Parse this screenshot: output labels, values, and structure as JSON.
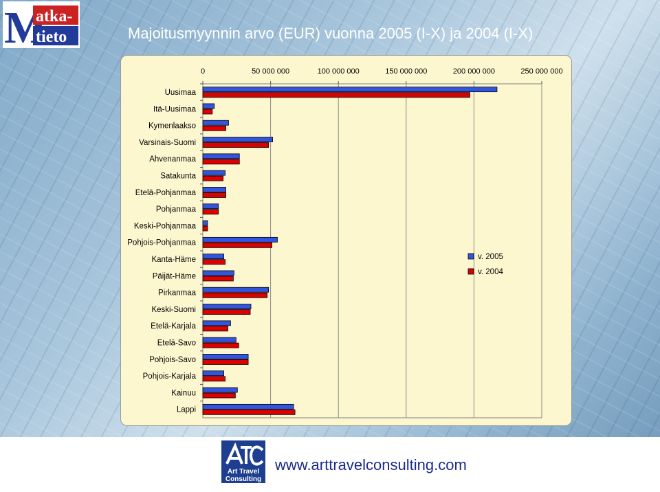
{
  "logo": {
    "line1": "atka-",
    "line2": "tieto",
    "icon": "matka-tieto-logo"
  },
  "title": "Majoitusmyynnin arvo (EUR) vuonna 2005 (I-X) ja 2004 (I-X)",
  "footer": {
    "website": "www.arttravelconsulting.com",
    "atc_logo_text": "Art Travel Consulting",
    "atc_logo_lines": [
      "Art Travel",
      "Consulting"
    ],
    "atc_logo_icon": "atc-logo"
  },
  "colors": {
    "series_2005": "#3355dd",
    "series_2004": "#dd0000",
    "panel": "#fdf7d0"
  },
  "chart_data": {
    "type": "bar",
    "orientation": "horizontal",
    "title": "Majoitusmyynnin arvo (EUR) vuonna 2005 (I-X) ja 2004 (I-X)",
    "xlabel": "",
    "ylabel": "",
    "xlim": [
      0,
      250000000
    ],
    "x_ticks": [
      0,
      50000000,
      100000000,
      150000000,
      200000000,
      250000000
    ],
    "x_tick_labels": [
      "0",
      "50 000 000",
      "100 000 000",
      "150 000 000",
      "200 000 000",
      "250 000 000"
    ],
    "x_axis_position": "top",
    "grid": "vertical",
    "legend_position": "right",
    "categories": [
      "Uusimaa",
      "Itä-Uusimaa",
      "Kymenlaakso",
      "Varsinais-Suomi",
      "Ahvenanmaa",
      "Satakunta",
      "Etelä-Pohjanmaa",
      "Pohjanmaa",
      "Keski-Pohjanmaa",
      "Pohjois-Pohjanmaa",
      "Kanta-Häme",
      "Päijät-Häme",
      "Pirkanmaa",
      "Keski-Suomi",
      "Etelä-Karjala",
      "Etelä-Savo",
      "Pohjois-Savo",
      "Pohjois-Karjala",
      "Kainuu",
      "Lappi"
    ],
    "series": [
      {
        "name": "v. 2005",
        "values": [
          217000000,
          8500000,
          19000000,
          51500000,
          27000000,
          16500000,
          17000000,
          11500000,
          3500000,
          55000000,
          15500000,
          23000000,
          48500000,
          35500000,
          20500000,
          24500000,
          33500000,
          15500000,
          25500000,
          67000000
        ]
      },
      {
        "name": "v. 2004",
        "values": [
          197000000,
          7000000,
          17000000,
          48500000,
          27000000,
          15000000,
          17000000,
          11500000,
          3500000,
          51000000,
          16500000,
          22500000,
          47500000,
          35000000,
          18500000,
          26500000,
          33500000,
          16500000,
          24000000,
          68000000
        ]
      }
    ]
  }
}
